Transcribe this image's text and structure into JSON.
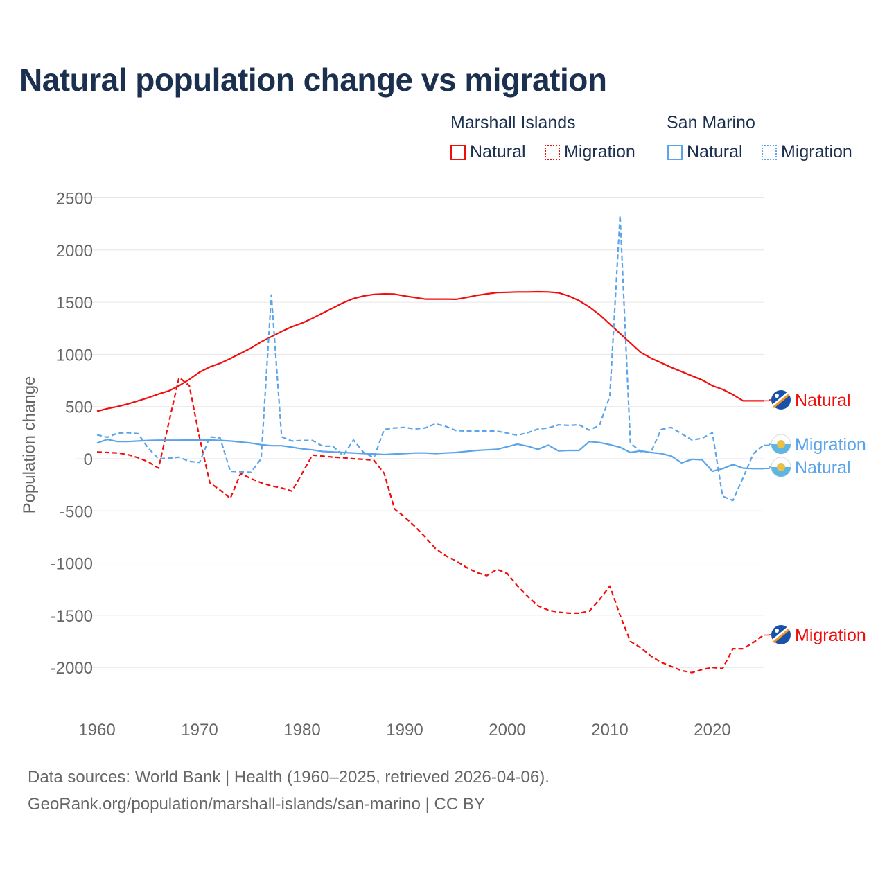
{
  "chart_data": {
    "type": "line",
    "title": "Natural population change vs migration",
    "ylabel": "Population change",
    "xlabel": "",
    "xlim": [
      1960,
      2025
    ],
    "ylim": [
      -2400,
      2600
    ],
    "x_ticks": [
      "1960",
      "1970",
      "1980",
      "1990",
      "2000",
      "2010",
      "2020"
    ],
    "y_ticks": [
      "2500",
      "2000",
      "1500",
      "1000",
      "500",
      "0",
      "-500",
      "-1000",
      "-1500",
      "-2000"
    ],
    "grid": true,
    "legend": {
      "placement": "top-right",
      "groups": [
        {
          "name": "Marshall Islands",
          "items": [
            "Natural",
            "Migration"
          ]
        },
        {
          "name": "San Marino",
          "items": [
            "Natural",
            "Migration"
          ]
        }
      ]
    },
    "x": [
      1960,
      1961,
      1962,
      1963,
      1964,
      1965,
      1966,
      1967,
      1968,
      1969,
      1970,
      1971,
      1972,
      1973,
      1974,
      1975,
      1976,
      1977,
      1978,
      1979,
      1980,
      1981,
      1982,
      1983,
      1984,
      1985,
      1986,
      1987,
      1988,
      1989,
      1990,
      1991,
      1992,
      1993,
      1994,
      1995,
      1996,
      1997,
      1998,
      1999,
      2000,
      2001,
      2002,
      2003,
      2004,
      2005,
      2006,
      2007,
      2008,
      2009,
      2010,
      2011,
      2012,
      2013,
      2014,
      2015,
      2016,
      2017,
      2018,
      2019,
      2020,
      2021,
      2022,
      2023,
      2024,
      2025
    ],
    "series": [
      {
        "name": "Marshall Islands Natural",
        "end_label": "Natural",
        "color": "#f20d0d",
        "dash": false,
        "values": [
          455,
          480,
          500,
          525,
          555,
          585,
          620,
          650,
          700,
          760,
          830,
          880,
          915,
          960,
          1010,
          1060,
          1120,
          1170,
          1220,
          1265,
          1300,
          1345,
          1395,
          1445,
          1495,
          1535,
          1560,
          1575,
          1580,
          1578,
          1560,
          1545,
          1530,
          1530,
          1530,
          1528,
          1545,
          1565,
          1580,
          1592,
          1595,
          1598,
          1598,
          1600,
          1598,
          1590,
          1560,
          1515,
          1455,
          1380,
          1290,
          1200,
          1110,
          1020,
          965,
          920,
          875,
          835,
          795,
          755,
          700,
          665,
          615,
          555,
          555,
          555
        ]
      },
      {
        "name": "Marshall Islands Migration",
        "end_label": "Migration",
        "color": "#f20d0d",
        "dash": true,
        "values": [
          65,
          60,
          55,
          40,
          10,
          -30,
          -90,
          345,
          780,
          700,
          200,
          -230,
          -300,
          -380,
          -140,
          -190,
          -230,
          -260,
          -280,
          -310,
          -140,
          35,
          25,
          15,
          10,
          0,
          -5,
          -15,
          -140,
          -480,
          -560,
          -650,
          -750,
          -860,
          -930,
          -980,
          -1040,
          -1090,
          -1120,
          -1060,
          -1100,
          -1220,
          -1320,
          -1410,
          -1450,
          -1470,
          -1480,
          -1480,
          -1460,
          -1350,
          -1220,
          -1500,
          -1750,
          -1810,
          -1890,
          -1950,
          -1990,
          -2030,
          -2050,
          -2020,
          -2000,
          -2010,
          -1820,
          -1820,
          -1760,
          -1690
        ]
      },
      {
        "name": "San Marino Natural",
        "end_label": "Natural",
        "color": "#5ba4ea",
        "dash": false,
        "values": [
          150,
          185,
          165,
          165,
          170,
          175,
          178,
          178,
          178,
          180,
          180,
          180,
          175,
          170,
          160,
          150,
          135,
          125,
          125,
          110,
          95,
          85,
          70,
          65,
          60,
          55,
          50,
          45,
          40,
          45,
          50,
          55,
          55,
          50,
          55,
          60,
          70,
          80,
          85,
          90,
          115,
          140,
          120,
          90,
          130,
          75,
          80,
          80,
          165,
          155,
          135,
          110,
          60,
          75,
          60,
          50,
          25,
          -40,
          -5,
          -10,
          -120,
          -95,
          -55,
          -90,
          -95,
          -95
        ]
      },
      {
        "name": "San Marino Migration",
        "end_label": "Migration",
        "color": "#5ba4ea",
        "dash": true,
        "values": [
          230,
          205,
          245,
          250,
          240,
          100,
          0,
          5,
          15,
          -25,
          -35,
          210,
          200,
          -120,
          -125,
          -130,
          0,
          1570,
          210,
          170,
          175,
          175,
          120,
          120,
          30,
          180,
          60,
          10,
          280,
          295,
          300,
          285,
          295,
          335,
          310,
          270,
          265,
          265,
          265,
          265,
          245,
          225,
          250,
          285,
          295,
          325,
          320,
          325,
          275,
          320,
          600,
          2330,
          150,
          70,
          60,
          280,
          300,
          240,
          180,
          195,
          250,
          -360,
          -400,
          -180,
          50,
          130
        ]
      }
    ]
  },
  "footer": {
    "line1": "Data sources: World Bank | Health (1960–2025, retrieved 2026-04-06).",
    "line2": "GeoRank.org/population/marshall-islands/san-marino | CC BY"
  }
}
